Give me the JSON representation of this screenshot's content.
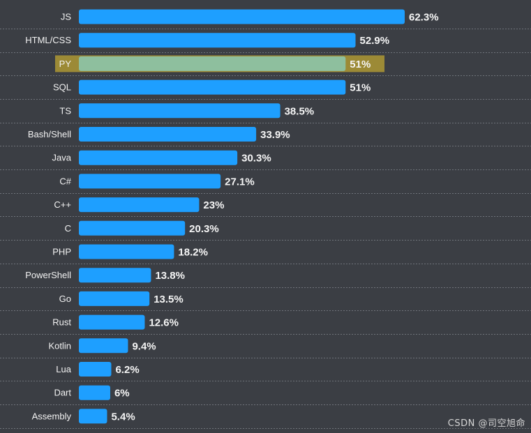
{
  "chart_data": {
    "type": "bar",
    "orientation": "horizontal",
    "categories": [
      "JS",
      "HTML/CSS",
      "PY",
      "SQL",
      "TS",
      "Bash/Shell",
      "Java",
      "C#",
      "C++",
      "C",
      "PHP",
      "PowerShell",
      "Go",
      "Rust",
      "Kotlin",
      "Lua",
      "Dart",
      "Assembly"
    ],
    "values": [
      62.3,
      52.9,
      51,
      51,
      38.5,
      33.9,
      30.3,
      27.1,
      23,
      20.3,
      18.2,
      13.8,
      13.5,
      12.6,
      9.4,
      6.2,
      6,
      5.4
    ],
    "value_labels": [
      "62.3%",
      "52.9%",
      "51%",
      "51%",
      "38.5%",
      "33.9%",
      "30.3%",
      "27.1%",
      "23%",
      "20.3%",
      "18.2%",
      "13.8%",
      "13.5%",
      "12.6%",
      "9.4%",
      "6.2%",
      "6%",
      "5.4%"
    ],
    "highlighted_index": 2,
    "xlim": [
      0,
      62.3
    ],
    "grid": "dashed row separators",
    "title": "",
    "xlabel": "",
    "ylabel": ""
  },
  "colors": {
    "background": "#3b3e44",
    "bar": "#1e9fff",
    "highlight_band": "#9c8a36",
    "highlight_bar": "#8ebf9e",
    "highlight_text": "#f4e29a"
  },
  "watermark": "CSDN @司空旭命"
}
